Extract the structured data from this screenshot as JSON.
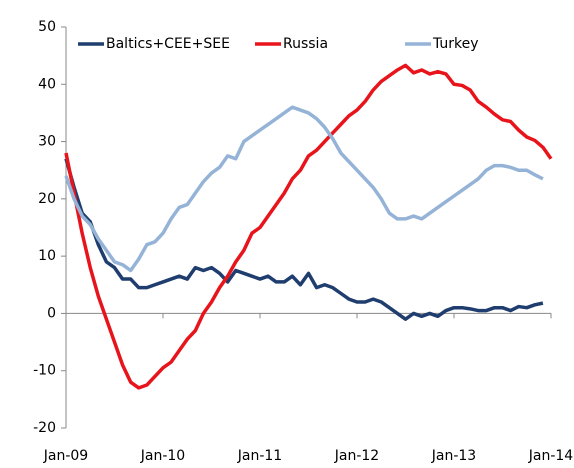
{
  "chart_data": {
    "type": "line",
    "categories": [
      "Jan-09",
      null,
      null,
      null,
      null,
      null,
      null,
      null,
      null,
      null,
      null,
      null,
      "Jan-10",
      null,
      null,
      null,
      null,
      null,
      null,
      null,
      null,
      null,
      null,
      null,
      "Jan-11",
      null,
      null,
      null,
      null,
      null,
      null,
      null,
      null,
      null,
      null,
      null,
      "Jan-12",
      null,
      null,
      null,
      null,
      null,
      null,
      null,
      null,
      null,
      null,
      null,
      "Jan-13",
      null,
      null,
      null,
      null,
      null,
      null,
      null,
      null,
      null,
      null,
      null,
      "Jan-14"
    ],
    "series": [
      {
        "name": "Baltics+CEE+SEE",
        "color": "#1f3d6e",
        "values": [
          27,
          22,
          17.5,
          16,
          12,
          9,
          8,
          6,
          6,
          4.5,
          4.5,
          5,
          5.5,
          6,
          6.5,
          6,
          8,
          7.5,
          8,
          7,
          5.5,
          7.5,
          7,
          6.5,
          6,
          6.5,
          5.5,
          5.5,
          6.5,
          5,
          7,
          4.5,
          5,
          4.5,
          3.5,
          2.5,
          2,
          2,
          2.5,
          2,
          1,
          0,
          -1,
          0,
          -0.5,
          0,
          -0.5,
          0.5,
          1,
          1,
          0.8,
          0.5,
          0.5,
          1,
          1,
          0.5,
          1.2,
          1,
          1.5,
          1.8,
          null
        ]
      },
      {
        "name": "Russia",
        "color": "#e8141b",
        "values": [
          28,
          21,
          14,
          8,
          3,
          -1,
          -5,
          -9,
          -12,
          -13,
          -12.5,
          -11,
          -9.5,
          -8.5,
          -6.5,
          -4.5,
          -3,
          0,
          2,
          4.5,
          6.5,
          9,
          11,
          14,
          15,
          17,
          19,
          21,
          23.5,
          25,
          27.5,
          28.5,
          30,
          31.5,
          33,
          34.5,
          35.5,
          37,
          39,
          40.5,
          41.5,
          42.5,
          43.3,
          42,
          42.5,
          41.8,
          42.2,
          41.8,
          40,
          39.8,
          39,
          37,
          36,
          34.8,
          33.8,
          33.5,
          32,
          30.8,
          30.2,
          29,
          27
        ]
      },
      {
        "name": "Turkey",
        "color": "#95b3d7",
        "values": [
          24,
          20,
          17,
          15.5,
          13,
          11,
          9,
          8.5,
          7.5,
          9.5,
          12,
          12.5,
          14,
          16.5,
          18.5,
          19,
          21,
          23,
          24.5,
          25.5,
          27.5,
          27,
          30,
          31,
          32,
          33,
          34,
          35,
          36,
          35.5,
          35,
          34,
          32.5,
          30.5,
          28,
          26.5,
          25,
          23.5,
          22,
          20,
          17.5,
          16.5,
          16.5,
          17,
          16.5,
          17.5,
          18.5,
          19.5,
          20.5,
          21.5,
          22.5,
          23.5,
          25,
          25.8,
          25.8,
          25.5,
          25,
          25,
          24.2,
          23.5,
          null
        ]
      }
    ],
    "ylim": [
      -20,
      50
    ],
    "yticks": [
      -20,
      -10,
      0,
      10,
      20,
      30,
      40,
      50
    ],
    "legend": "top"
  }
}
